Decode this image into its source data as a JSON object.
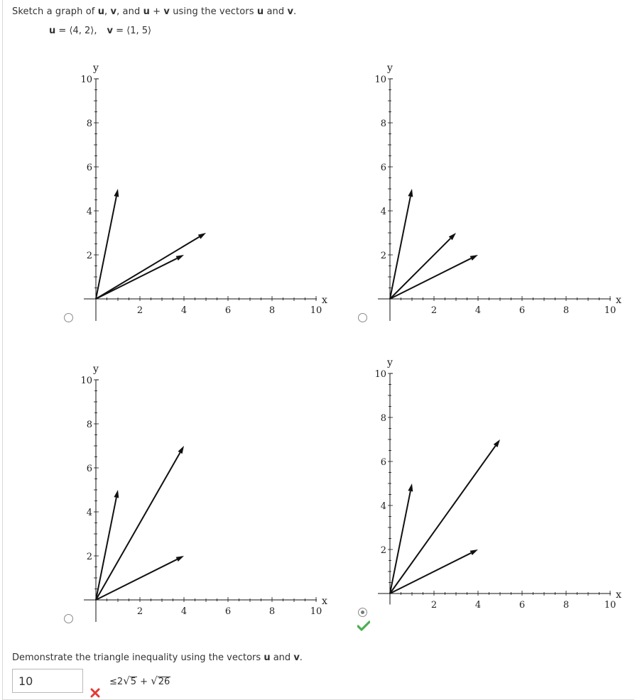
{
  "question": {
    "prompt_parts": [
      "Sketch a graph of ",
      "u",
      ", ",
      "v",
      ", and ",
      "u",
      " + ",
      "v",
      " using the vectors ",
      "u",
      " and ",
      "v",
      "."
    ],
    "u_name": "u",
    "u_value": " = ⟨4, 2⟩,",
    "v_name": "v",
    "v_value": " = ⟨1, 5⟩"
  },
  "graphs": [
    {
      "id": "option-1",
      "selected": false,
      "vectors": [
        [
          1,
          5
        ],
        [
          4,
          2
        ],
        [
          5,
          3
        ]
      ],
      "x_ticks": [
        "2",
        "4",
        "6",
        "8",
        "10"
      ],
      "y_ticks": [
        "2",
        "4",
        "6",
        "8",
        "10"
      ],
      "xlabel": "x",
      "ylabel": "y",
      "ylim": [
        -1,
        10
      ]
    },
    {
      "id": "option-2",
      "selected": false,
      "vectors": [
        [
          1,
          5
        ],
        [
          3,
          3
        ],
        [
          4,
          2
        ]
      ],
      "x_ticks": [
        "2",
        "4",
        "6",
        "8",
        "10"
      ],
      "y_ticks": [
        "2",
        "4",
        "6",
        "8",
        "10"
      ],
      "xlabel": "x",
      "ylabel": "y",
      "ylim": [
        -1,
        10
      ]
    },
    {
      "id": "option-3",
      "selected": false,
      "vectors": [
        [
          1,
          5
        ],
        [
          4,
          7
        ],
        [
          4,
          2
        ]
      ],
      "x_ticks": [
        "2",
        "4",
        "6",
        "8",
        "10"
      ],
      "y_ticks": [
        "2",
        "4",
        "6",
        "8",
        "10"
      ],
      "xlabel": "x",
      "ylabel": "y",
      "ylim": [
        -1,
        10
      ]
    },
    {
      "id": "option-4",
      "selected": true,
      "correct": true,
      "vectors": [
        [
          1,
          5
        ],
        [
          5,
          7
        ],
        [
          4,
          2
        ]
      ],
      "x_ticks": [
        "2",
        "4",
        "6",
        "8",
        "10"
      ],
      "y_ticks": [
        "2",
        "4",
        "6",
        "8",
        "10"
      ],
      "xlabel": "x",
      "ylabel": "y",
      "ylim": [
        -0.5,
        10
      ]
    }
  ],
  "triangle": {
    "prompt_parts": [
      "Demonstrate the triangle inequality using the vectors ",
      "u",
      " and ",
      "v",
      "."
    ],
    "answer_value": "10",
    "answer_correct": false,
    "rhs_leq": "≤",
    "rhs_coef": "2",
    "rhs_rad1": "5",
    "rhs_plus": " + ",
    "rhs_rad2": "26"
  },
  "colors": {
    "correct": "#4caf50",
    "incorrect": "#e53935",
    "ink": "#111111"
  }
}
